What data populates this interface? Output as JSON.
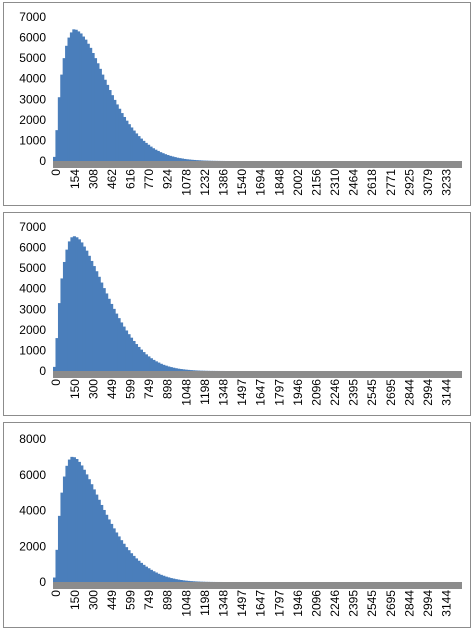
{
  "colors": {
    "bar": "#4a7ebb",
    "axis": "#8c8c8c",
    "frame": "#8c8c8c"
  },
  "chart_data": [
    {
      "type": "bar",
      "title": "",
      "xlabel": "",
      "ylabel": "",
      "ylim": [
        0,
        7000
      ],
      "yticks": [
        "0",
        "1000",
        "2000",
        "3000",
        "4000",
        "5000",
        "6000",
        "7000"
      ],
      "xlim": [
        0,
        3388
      ],
      "xticks": [
        "0",
        "154",
        "308",
        "462",
        "616",
        "770",
        "924",
        "1078",
        "1232",
        "1386",
        "1540",
        "1694",
        "1848",
        "2002",
        "2156",
        "2310",
        "2464",
        "2618",
        "2771",
        "2925",
        "3079",
        "3233"
      ],
      "grid": false,
      "legend": "none",
      "series": [
        {
          "x": [
            0,
            20,
            40,
            60,
            80,
            100,
            120,
            140,
            160,
            180,
            200,
            220,
            240,
            260,
            280,
            300,
            320,
            340,
            360,
            380,
            400,
            420,
            440,
            460,
            480,
            500,
            520,
            540,
            560,
            580,
            600,
            620,
            640,
            660,
            680,
            700,
            720,
            740,
            760,
            780,
            800,
            820,
            840,
            860,
            880,
            900,
            920,
            940,
            960,
            980,
            1000,
            1020,
            1040,
            1060,
            1080,
            1100,
            1120,
            1140,
            1160,
            1180,
            1200,
            1220,
            1240,
            1260,
            1280,
            1300,
            1320,
            1340,
            1360,
            1380,
            1400,
            1420,
            1440,
            1460,
            1480,
            1500,
            1520,
            1540
          ],
          "values": [
            200,
            1500,
            3100,
            4200,
            5000,
            5600,
            6000,
            6250,
            6400,
            6380,
            6300,
            6200,
            6050,
            5900,
            5700,
            5500,
            5250,
            5000,
            4750,
            4480,
            4200,
            3950,
            3700,
            3450,
            3200,
            2970,
            2750,
            2540,
            2330,
            2140,
            1960,
            1790,
            1630,
            1480,
            1340,
            1210,
            1090,
            980,
            880,
            790,
            700,
            620,
            550,
            490,
            430,
            380,
            330,
            290,
            250,
            220,
            190,
            160,
            140,
            120,
            100,
            85,
            72,
            60,
            50,
            42,
            35,
            28,
            22,
            18,
            14,
            10,
            8,
            6,
            4,
            3,
            2,
            1,
            1,
            0,
            0,
            0,
            0,
            0
          ]
        }
      ]
    },
    {
      "type": "bar",
      "title": "",
      "xlabel": "",
      "ylabel": "",
      "ylim": [
        0,
        7000
      ],
      "yticks": [
        "0",
        "1000",
        "2000",
        "3000",
        "4000",
        "5000",
        "6000",
        "7000"
      ],
      "xlim": [
        0,
        3294
      ],
      "xticks": [
        "0",
        "150",
        "300",
        "449",
        "599",
        "749",
        "898",
        "1048",
        "1198",
        "1348",
        "1497",
        "1647",
        "1797",
        "1946",
        "2096",
        "2246",
        "2395",
        "2545",
        "2695",
        "2844",
        "2994",
        "3144"
      ],
      "grid": false,
      "legend": "none",
      "series": [
        {
          "x": [
            0,
            20,
            40,
            60,
            80,
            100,
            120,
            140,
            160,
            180,
            200,
            220,
            240,
            260,
            280,
            300,
            320,
            340,
            360,
            380,
            400,
            420,
            440,
            460,
            480,
            500,
            520,
            540,
            560,
            580,
            600,
            620,
            640,
            660,
            680,
            700,
            720,
            740,
            760,
            780,
            800,
            820,
            840,
            860,
            880,
            900,
            920,
            940,
            960,
            980,
            1000,
            1020,
            1040,
            1060,
            1080,
            1100,
            1120,
            1140,
            1160,
            1180,
            1200,
            1220,
            1240,
            1260,
            1280,
            1300,
            1320,
            1340,
            1360,
            1380,
            1400,
            1420,
            1440,
            1460,
            1480,
            1500
          ],
          "values": [
            200,
            1600,
            3300,
            4500,
            5300,
            5900,
            6300,
            6500,
            6550,
            6500,
            6400,
            6250,
            6050,
            5850,
            5600,
            5350,
            5100,
            4850,
            4580,
            4300,
            4030,
            3770,
            3510,
            3260,
            3020,
            2790,
            2570,
            2360,
            2160,
            1970,
            1790,
            1620,
            1460,
            1310,
            1170,
            1040,
            920,
            810,
            710,
            620,
            540,
            470,
            410,
            350,
            300,
            260,
            220,
            190,
            160,
            135,
            112,
            95,
            80,
            66,
            54,
            44,
            35,
            28,
            22,
            17,
            13,
            10,
            7,
            5,
            4,
            3,
            2,
            1,
            1,
            0,
            0,
            0,
            0,
            0,
            0,
            0
          ]
        }
      ]
    },
    {
      "type": "bar",
      "title": "",
      "xlabel": "",
      "ylabel": "",
      "ylim": [
        0,
        8000
      ],
      "yticks": [
        "0",
        "2000",
        "4000",
        "6000",
        "8000"
      ],
      "xlim": [
        0,
        3294
      ],
      "xticks": [
        "0",
        "150",
        "300",
        "449",
        "599",
        "749",
        "898",
        "1048",
        "1198",
        "1348",
        "1497",
        "1647",
        "1797",
        "1946",
        "2096",
        "2246",
        "2395",
        "2545",
        "2695",
        "2844",
        "2994",
        "3144"
      ],
      "grid": false,
      "legend": "none",
      "series": [
        {
          "x": [
            0,
            20,
            40,
            60,
            80,
            100,
            120,
            140,
            160,
            180,
            200,
            220,
            240,
            260,
            280,
            300,
            320,
            340,
            360,
            380,
            400,
            420,
            440,
            460,
            480,
            500,
            520,
            540,
            560,
            580,
            600,
            620,
            640,
            660,
            680,
            700,
            720,
            740,
            760,
            780,
            800,
            820,
            840,
            860,
            880,
            900,
            920,
            940,
            960,
            980,
            1000,
            1020,
            1040,
            1060,
            1080,
            1100,
            1120,
            1140,
            1160,
            1180,
            1200,
            1220,
            1240,
            1260,
            1280,
            1300,
            1320,
            1340,
            1360,
            1380,
            1400,
            1420,
            1440,
            1460,
            1480,
            1500
          ],
          "values": [
            250,
            1800,
            3700,
            5000,
            5900,
            6500,
            6850,
            7000,
            6980,
            6880,
            6720,
            6520,
            6280,
            6020,
            5750,
            5470,
            5180,
            4890,
            4600,
            4310,
            4030,
            3760,
            3500,
            3250,
            3000,
            2770,
            2550,
            2340,
            2140,
            1950,
            1780,
            1610,
            1460,
            1320,
            1190,
            1070,
            960,
            860,
            770,
            680,
            600,
            530,
            460,
            400,
            350,
            300,
            260,
            220,
            190,
            160,
            135,
            112,
            92,
            76,
            62,
            50,
            40,
            32,
            25,
            19,
            14,
            10,
            7,
            5,
            3,
            2,
            1,
            1,
            0,
            0,
            0,
            0,
            0,
            0,
            0,
            0
          ]
        }
      ]
    }
  ]
}
